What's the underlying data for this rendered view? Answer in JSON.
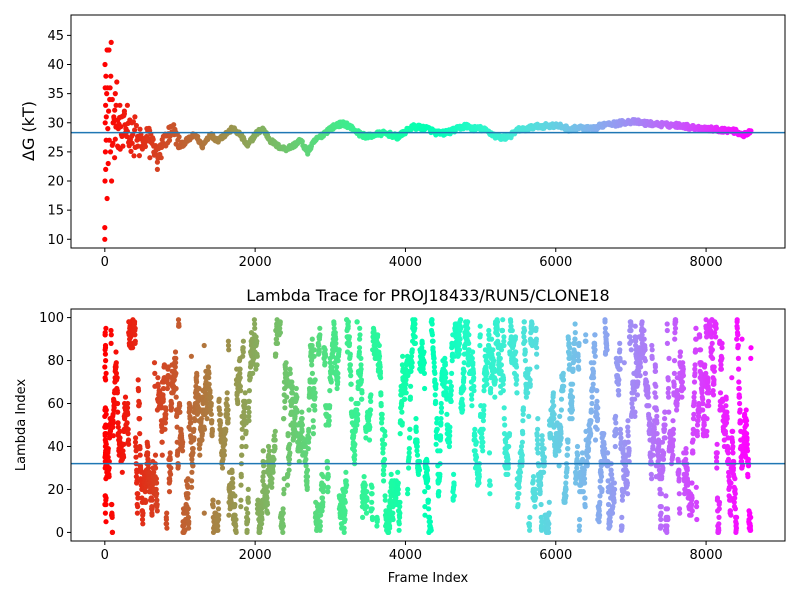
{
  "chart_data": [
    {
      "type": "scatter",
      "title": "",
      "xlabel": "",
      "ylabel": "ΔG (kT)",
      "xlim": [
        -450,
        9050
      ],
      "ylim": [
        8.5,
        48.5
      ],
      "xticks": [
        0,
        2000,
        4000,
        6000,
        8000
      ],
      "yticks": [
        10,
        15,
        20,
        25,
        30,
        35,
        40,
        45
      ],
      "x_tick_labels": [
        "0",
        "2000",
        "4000",
        "6000",
        "8000"
      ],
      "y_tick_labels": [
        "10",
        "15",
        "20",
        "25",
        "30",
        "35",
        "40",
        "45"
      ],
      "colormap": "rainbow (red at frame 0 → violet at last frame)",
      "hline": 28.3,
      "hline_color": "#1f77b4",
      "n_frames": 8600,
      "trace": [
        [
          0,
          28
        ],
        [
          40,
          30
        ],
        [
          80,
          28
        ],
        [
          120,
          30
        ],
        [
          200,
          28
        ],
        [
          300,
          29
        ],
        [
          400,
          27
        ],
        [
          500,
          26
        ],
        [
          600,
          28
        ],
        [
          700,
          24
        ],
        [
          800,
          27
        ],
        [
          900,
          29
        ],
        [
          1000,
          26
        ],
        [
          1100,
          27
        ],
        [
          1200,
          28
        ],
        [
          1300,
          26
        ],
        [
          1400,
          28
        ],
        [
          1500,
          27
        ],
        [
          1600,
          28
        ],
        [
          1700,
          29
        ],
        [
          1800,
          28
        ],
        [
          1900,
          26
        ],
        [
          2000,
          28
        ],
        [
          2100,
          29
        ],
        [
          2200,
          27
        ],
        [
          2300,
          26
        ],
        [
          2400,
          25.5
        ],
        [
          2500,
          26
        ],
        [
          2600,
          27
        ],
        [
          2700,
          25
        ],
        [
          2800,
          27
        ],
        [
          2900,
          28
        ],
        [
          3000,
          29
        ],
        [
          3100,
          29.7
        ],
        [
          3200,
          29.8
        ],
        [
          3300,
          29
        ],
        [
          3400,
          28
        ],
        [
          3500,
          27.6
        ],
        [
          3600,
          28
        ],
        [
          3700,
          28.2
        ],
        [
          3800,
          28
        ],
        [
          3900,
          27.5
        ],
        [
          4000,
          28.5
        ],
        [
          4100,
          29.3
        ],
        [
          4200,
          29.2
        ],
        [
          4300,
          29
        ],
        [
          4400,
          28.3
        ],
        [
          4500,
          28.2
        ],
        [
          4600,
          28.5
        ],
        [
          4700,
          29
        ],
        [
          4800,
          29.5
        ],
        [
          4900,
          29
        ],
        [
          5000,
          29
        ],
        [
          5100,
          28.5
        ],
        [
          5200,
          27.7
        ],
        [
          5300,
          27.4
        ],
        [
          5400,
          27.8
        ],
        [
          5500,
          28.8
        ],
        [
          5600,
          28.9
        ],
        [
          5700,
          29.3
        ],
        [
          5800,
          29.4
        ],
        [
          5900,
          29.5
        ],
        [
          6000,
          29.5
        ],
        [
          6100,
          29.3
        ],
        [
          6200,
          28.8
        ],
        [
          6300,
          29.2
        ],
        [
          6400,
          29
        ],
        [
          6500,
          28.9
        ],
        [
          6600,
          29.5
        ],
        [
          6700,
          30
        ],
        [
          6800,
          29.8
        ],
        [
          6900,
          30.1
        ],
        [
          7000,
          30.2
        ],
        [
          7100,
          30.1
        ],
        [
          7200,
          29.9
        ],
        [
          7300,
          29.8
        ],
        [
          7400,
          29.7
        ],
        [
          7500,
          29.6
        ],
        [
          7600,
          29.6
        ],
        [
          7700,
          29.5
        ],
        [
          7800,
          29.2
        ],
        [
          7900,
          29.1
        ],
        [
          8000,
          29
        ],
        [
          8100,
          28.9
        ],
        [
          8200,
          28.8
        ],
        [
          8300,
          28.7
        ],
        [
          8400,
          28.5
        ],
        [
          8500,
          27.9
        ],
        [
          8600,
          28.4
        ]
      ],
      "early_spread": [
        [
          0,
          12
        ],
        [
          0,
          10
        ],
        [
          2,
          40
        ],
        [
          3,
          20
        ],
        [
          5,
          36
        ],
        [
          5,
          30
        ],
        [
          8,
          25
        ],
        [
          10,
          33
        ],
        [
          12,
          22
        ],
        [
          15,
          38
        ],
        [
          18,
          27
        ],
        [
          20,
          31
        ],
        [
          25,
          35
        ],
        [
          30,
          42.5
        ],
        [
          30,
          17
        ],
        [
          35,
          36
        ],
        [
          40,
          29
        ],
        [
          45,
          23
        ],
        [
          50,
          32
        ],
        [
          55,
          42.5
        ],
        [
          60,
          27
        ],
        [
          65,
          34
        ],
        [
          70,
          36
        ],
        [
          75,
          25
        ],
        [
          80,
          38
        ],
        [
          85,
          43.8
        ],
        [
          90,
          20
        ],
        [
          100,
          34
        ],
        [
          110,
          30
        ],
        [
          120,
          31
        ],
        [
          130,
          24
        ],
        [
          140,
          35
        ],
        [
          150,
          33
        ],
        [
          160,
          37
        ],
        [
          170,
          26
        ],
        [
          180,
          29
        ],
        [
          200,
          33
        ],
        [
          220,
          31
        ],
        [
          240,
          26
        ],
        [
          260,
          32
        ],
        [
          280,
          29
        ],
        [
          300,
          33
        ],
        [
          330,
          27
        ],
        [
          360,
          30
        ],
        [
          400,
          31
        ],
        [
          440,
          26
        ],
        [
          480,
          28
        ],
        [
          520,
          27
        ],
        [
          560,
          29
        ],
        [
          600,
          24
        ],
        [
          650,
          26
        ],
        [
          700,
          22
        ],
        [
          750,
          24
        ]
      ]
    },
    {
      "type": "scatter",
      "title": "Lambda Trace for PROJ18433/RUN5/CLONE18",
      "xlabel": "Frame Index",
      "ylabel": "Lambda Index",
      "xlim": [
        -450,
        9050
      ],
      "ylim": [
        -4,
        104
      ],
      "xticks": [
        0,
        2000,
        4000,
        6000,
        8000
      ],
      "yticks": [
        0,
        20,
        40,
        60,
        80,
        100
      ],
      "x_tick_labels": [
        "0",
        "2000",
        "4000",
        "6000",
        "8000"
      ],
      "y_tick_labels": [
        "0",
        "20",
        "40",
        "60",
        "80",
        "100"
      ],
      "lambda_range": [
        0,
        99
      ],
      "colormap": "rainbow (red at frame 0 → violet at last frame)",
      "hline": 32,
      "hline_color": "#1f77b4",
      "n_frames": 8600,
      "n_points": 4300
    }
  ]
}
